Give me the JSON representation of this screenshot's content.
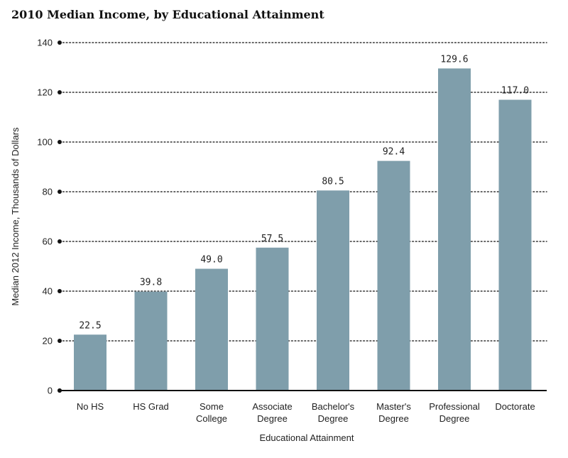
{
  "chart_data": {
    "type": "bar",
    "title": "2010 Median Income, by Educational Attainment",
    "xlabel": "Educational Attainment",
    "ylabel": "Median 2012 Income, Thousands of Dollars",
    "categories": [
      [
        "No HS"
      ],
      [
        "HS Grad"
      ],
      [
        "Some",
        "College"
      ],
      [
        "Associate",
        "Degree"
      ],
      [
        "Bachelor's",
        "Degree"
      ],
      [
        "Master's",
        "Degree"
      ],
      [
        "Professional",
        "Degree"
      ],
      [
        "Doctorate"
      ]
    ],
    "values": [
      22.5,
      39.8,
      49.0,
      57.5,
      80.5,
      92.4,
      129.6,
      117.0
    ],
    "value_labels": [
      "22.5",
      "39.8",
      "49.0",
      "57.5",
      "80.5",
      "92.4",
      "129.6",
      "117.0"
    ],
    "ylim": [
      0,
      140
    ],
    "yticks": [
      0,
      20,
      40,
      60,
      80,
      100,
      120,
      140
    ],
    "grid": "horizontal-dotted",
    "colors": {
      "bar": "#7f9eab",
      "axis": "#111111",
      "grid": "#333333"
    }
  }
}
